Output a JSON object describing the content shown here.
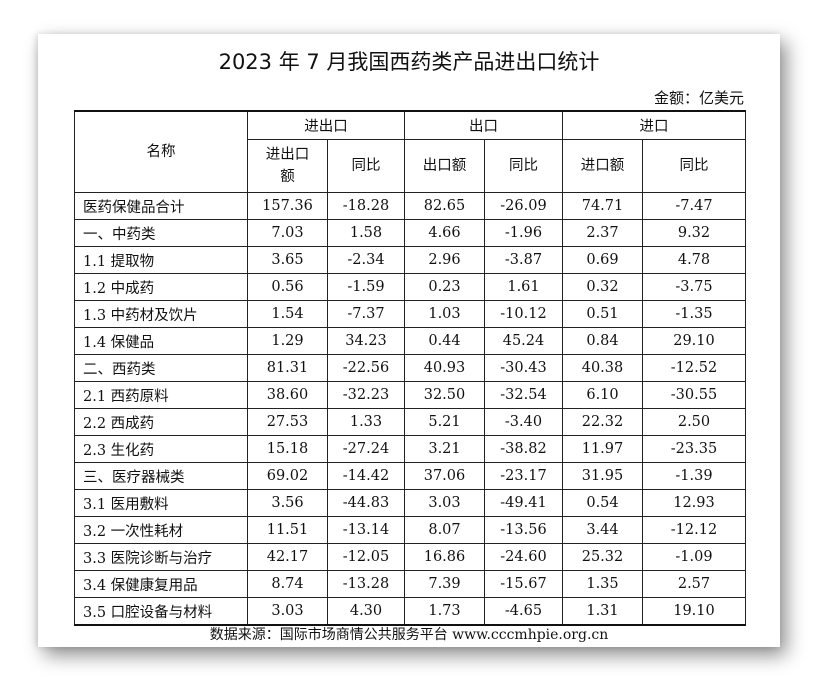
{
  "title": "2023 年 7 月我国西药类产品进出口统计",
  "unit": "金额：亿美元",
  "headers": {
    "name": "名称",
    "group_total": "进出口",
    "group_export": "出口",
    "group_import": "进口",
    "total_amount": "进出口额",
    "export_amount": "出口额",
    "import_amount": "进口额",
    "yoy": "同比"
  },
  "rows": [
    {
      "name": "医药保健品合计",
      "total": "157.36",
      "total_yoy": "-18.28",
      "export": "82.65",
      "export_yoy": "-26.09",
      "import": "74.71",
      "import_yoy": "-7.47"
    },
    {
      "name": "一、中药类",
      "total": "7.03",
      "total_yoy": "1.58",
      "export": "4.66",
      "export_yoy": "-1.96",
      "import": "2.37",
      "import_yoy": "9.32"
    },
    {
      "name": "1.1 提取物",
      "total": "3.65",
      "total_yoy": "-2.34",
      "export": "2.96",
      "export_yoy": "-3.87",
      "import": "0.69",
      "import_yoy": "4.78"
    },
    {
      "name": "1.2 中成药",
      "total": "0.56",
      "total_yoy": "-1.59",
      "export": "0.23",
      "export_yoy": "1.61",
      "import": "0.32",
      "import_yoy": "-3.75"
    },
    {
      "name": "1.3 中药材及饮片",
      "total": "1.54",
      "total_yoy": "-7.37",
      "export": "1.03",
      "export_yoy": "-10.12",
      "import": "0.51",
      "import_yoy": "-1.35"
    },
    {
      "name": "1.4 保健品",
      "total": "1.29",
      "total_yoy": "34.23",
      "export": "0.44",
      "export_yoy": "45.24",
      "import": "0.84",
      "import_yoy": "29.10"
    },
    {
      "name": "二、西药类",
      "total": "81.31",
      "total_yoy": "-22.56",
      "export": "40.93",
      "export_yoy": "-30.43",
      "import": "40.38",
      "import_yoy": "-12.52"
    },
    {
      "name": "2.1 西药原料",
      "total": "38.60",
      "total_yoy": "-32.23",
      "export": "32.50",
      "export_yoy": "-32.54",
      "import": "6.10",
      "import_yoy": "-30.55"
    },
    {
      "name": "2.2 西成药",
      "total": "27.53",
      "total_yoy": "1.33",
      "export": "5.21",
      "export_yoy": "-3.40",
      "import": "22.32",
      "import_yoy": "2.50"
    },
    {
      "name": "2.3 生化药",
      "total": "15.18",
      "total_yoy": "-27.24",
      "export": "3.21",
      "export_yoy": "-38.82",
      "import": "11.97",
      "import_yoy": "-23.35"
    },
    {
      "name": "三、医疗器械类",
      "total": "69.02",
      "total_yoy": "-14.42",
      "export": "37.06",
      "export_yoy": "-23.17",
      "import": "31.95",
      "import_yoy": "-1.39"
    },
    {
      "name": "3.1 医用敷料",
      "total": "3.56",
      "total_yoy": "-44.83",
      "export": "3.03",
      "export_yoy": "-49.41",
      "import": "0.54",
      "import_yoy": "12.93"
    },
    {
      "name": "3.2 一次性耗材",
      "total": "11.51",
      "total_yoy": "-13.14",
      "export": "8.07",
      "export_yoy": "-13.56",
      "import": "3.44",
      "import_yoy": "-12.12"
    },
    {
      "name": "3.3 医院诊断与治疗",
      "total": "42.17",
      "total_yoy": "-12.05",
      "export": "16.86",
      "export_yoy": "-24.60",
      "import": "25.32",
      "import_yoy": "-1.09"
    },
    {
      "name": "3.4 保健康复用品",
      "total": "8.74",
      "total_yoy": "-13.28",
      "export": "7.39",
      "export_yoy": "-15.67",
      "import": "1.35",
      "import_yoy": "2.57"
    },
    {
      "name": "3.5 口腔设备与材料",
      "total": "3.03",
      "total_yoy": "4.30",
      "export": "1.73",
      "export_yoy": "-4.65",
      "import": "1.31",
      "import_yoy": "19.10"
    }
  ],
  "source": "数据来源：国际市场商情公共服务平台 www.cccmhpie.org.cn"
}
